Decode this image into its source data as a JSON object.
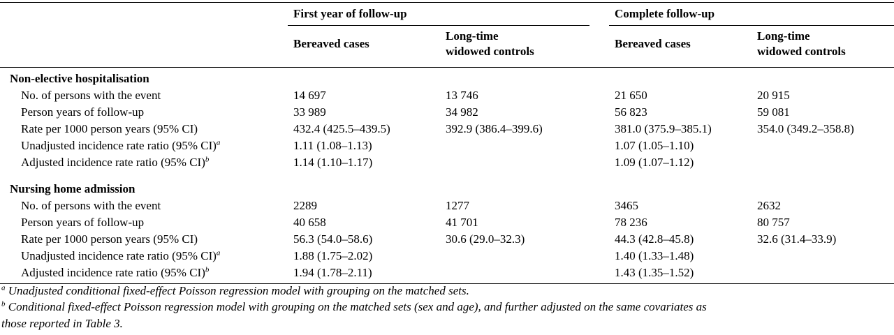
{
  "header": {
    "group1": "First year of follow-up",
    "group2": "Complete follow-up",
    "columns": [
      [
        "Bereaved cases"
      ],
      [
        "Long-time",
        "widowed controls"
      ],
      [
        "Bereaved cases"
      ],
      [
        "Long-time",
        "widowed controls"
      ]
    ]
  },
  "sections": [
    {
      "title": "Non-elective hospitalisation",
      "rows": [
        {
          "label": "No. of persons with the event",
          "sup": "",
          "values": [
            "14 697",
            "13 746",
            "21 650",
            "20 915"
          ]
        },
        {
          "label": "Person years of follow-up",
          "sup": "",
          "values": [
            "33 989",
            "34 982",
            "56 823",
            "59 081"
          ]
        },
        {
          "label": "Rate per 1000 person years (95% CI)",
          "sup": "",
          "values": [
            "432.4 (425.5–439.5)",
            "392.9 (386.4–399.6)",
            "381.0 (375.9–385.1)",
            "354.0 (349.2–358.8)"
          ]
        },
        {
          "label": "Unadjusted incidence rate ratio (95% CI)",
          "sup": "a",
          "values": [
            "1.11 (1.08–1.13)",
            "",
            "1.07 (1.05–1.10)",
            ""
          ]
        },
        {
          "label": "Adjusted incidence rate ratio (95% CI)",
          "sup": "b",
          "values": [
            "1.14 (1.10–1.17)",
            "",
            "1.09 (1.07–1.12)",
            ""
          ]
        }
      ]
    },
    {
      "title": "Nursing home admission",
      "rows": [
        {
          "label": "No. of persons with the event",
          "sup": "",
          "values": [
            "2289",
            "1277",
            "3465",
            "2632"
          ]
        },
        {
          "label": "Person years of follow-up",
          "sup": "",
          "values": [
            "40 658",
            "41 701",
            "78 236",
            "80 757"
          ]
        },
        {
          "label": "Rate per 1000 person years (95% CI)",
          "sup": "",
          "values": [
            "56.3 (54.0–58.6)",
            "30.6 (29.0–32.3)",
            "44.3 (42.8–45.8)",
            "32.6 (31.4–33.9)"
          ]
        },
        {
          "label": "Unadjusted incidence rate ratio (95% CI)",
          "sup": "a",
          "values": [
            "1.88 (1.75–2.02)",
            "",
            "1.40 (1.33–1.48)",
            ""
          ]
        },
        {
          "label": "Adjusted incidence rate ratio (95% CI)",
          "sup": "b",
          "values": [
            "1.94 (1.78–2.11)",
            "",
            "1.43 (1.35–1.52)",
            ""
          ]
        }
      ]
    }
  ],
  "footnotes": [
    {
      "mark": "a",
      "lines": [
        "Unadjusted conditional fixed-effect Poisson regression model with grouping on the matched sets."
      ]
    },
    {
      "mark": "b",
      "lines": [
        "Conditional fixed-effect Poisson regression model with grouping on the matched sets (sex and age), and further adjusted on the same covariates as",
        "those reported in Table 3."
      ]
    }
  ]
}
